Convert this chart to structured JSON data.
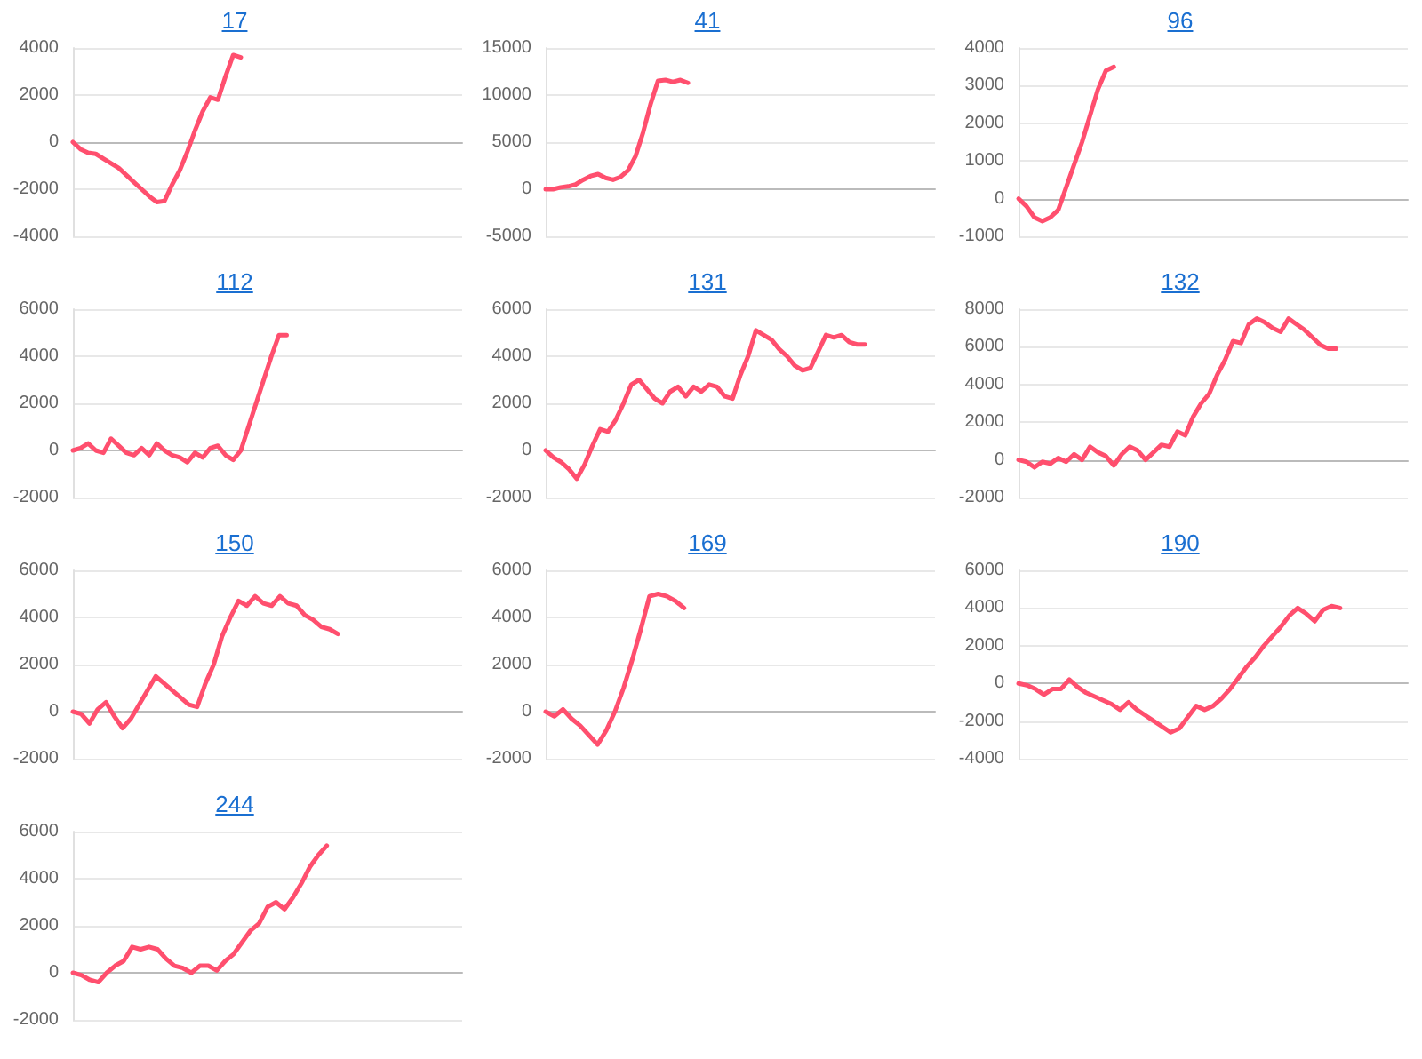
{
  "chart_data": [
    {
      "type": "line",
      "title": "17",
      "color": "#ff4f6e",
      "grid": "y",
      "tick_labels": "y",
      "ylim": [
        -4000,
        4000
      ],
      "yticks": [
        -4000,
        -2000,
        0,
        2000,
        4000
      ],
      "categories": [
        null,
        null,
        null,
        null,
        null,
        null,
        null,
        null,
        null,
        null,
        null,
        null,
        null,
        null,
        null,
        null,
        null,
        null,
        null,
        null,
        null,
        null,
        null,
        null,
        null,
        null,
        null,
        null,
        null,
        null,
        null,
        null,
        null,
        null,
        null,
        null,
        null,
        null,
        null,
        null,
        null,
        null,
        null,
        null,
        null,
        null,
        null,
        null,
        null,
        null,
        null,
        null
      ],
      "values": [
        0,
        -300,
        -450,
        -500,
        -700,
        -900,
        -1100,
        -1400,
        -1700,
        -2000,
        -2300,
        -2550,
        -2500,
        -1800,
        -1200,
        -400,
        500,
        1300,
        1900,
        1800,
        2800,
        3700,
        3600,
        null,
        null,
        null,
        null,
        null,
        null,
        null,
        null,
        null,
        null,
        null,
        null,
        null,
        null,
        null,
        null,
        null,
        null,
        null,
        null,
        null,
        null,
        null,
        null,
        null,
        null,
        null,
        null,
        null
      ]
    },
    {
      "type": "line",
      "title": "41",
      "color": "#ff4f6e",
      "grid": "y",
      "tick_labels": "y",
      "ylim": [
        -5000,
        15000
      ],
      "yticks": [
        -5000,
        0,
        5000,
        10000,
        15000
      ],
      "categories": [
        null,
        null,
        null,
        null,
        null,
        null,
        null,
        null,
        null,
        null,
        null,
        null,
        null,
        null,
        null,
        null,
        null,
        null,
        null,
        null,
        null,
        null,
        null,
        null,
        null,
        null,
        null,
        null,
        null,
        null,
        null,
        null,
        null,
        null,
        null,
        null,
        null,
        null,
        null,
        null,
        null,
        null,
        null,
        null,
        null,
        null,
        null,
        null,
        null,
        null,
        null,
        null,
        null
      ],
      "values": [
        0,
        0,
        200,
        300,
        500,
        1000,
        1400,
        1600,
        1200,
        1000,
        1300,
        2000,
        3500,
        6000,
        9000,
        11500,
        11600,
        11400,
        11600,
        11300,
        null,
        null,
        null,
        null,
        null,
        null,
        null,
        null,
        null,
        null,
        null,
        null,
        null,
        null,
        null,
        null,
        null,
        null,
        null,
        null,
        null,
        null,
        null,
        null,
        null,
        null,
        null,
        null,
        null,
        null,
        null,
        null,
        null
      ]
    },
    {
      "type": "line",
      "title": "96",
      "color": "#ff4f6e",
      "grid": "y",
      "tick_labels": "y",
      "ylim": [
        -1000,
        4000
      ],
      "yticks": [
        -1000,
        0,
        1000,
        2000,
        3000,
        4000
      ],
      "categories": [
        null,
        null,
        null,
        null,
        null,
        null,
        null,
        null,
        null,
        null,
        null,
        null,
        null,
        null,
        null,
        null,
        null,
        null,
        null,
        null,
        null,
        null,
        null,
        null,
        null,
        null,
        null,
        null,
        null,
        null,
        null,
        null,
        null,
        null,
        null,
        null,
        null,
        null,
        null,
        null,
        null,
        null,
        null,
        null,
        null,
        null,
        null,
        null,
        null,
        null
      ],
      "values": [
        0,
        -200,
        -500,
        -600,
        -500,
        -300,
        300,
        900,
        1500,
        2200,
        2900,
        3400,
        3500,
        null,
        null,
        null,
        null,
        null,
        null,
        null,
        null,
        null,
        null,
        null,
        null,
        null,
        null,
        null,
        null,
        null,
        null,
        null,
        null,
        null,
        null,
        null,
        null,
        null,
        null,
        null,
        null,
        null,
        null,
        null,
        null,
        null,
        null,
        null,
        null,
        null
      ]
    },
    {
      "type": "line",
      "title": "112",
      "color": "#ff4f6e",
      "grid": "y",
      "tick_labels": "y",
      "ylim": [
        -2000,
        6000
      ],
      "yticks": [
        -2000,
        0,
        2000,
        4000,
        6000
      ],
      "categories": [
        null,
        null,
        null,
        null,
        null,
        null,
        null,
        null,
        null,
        null,
        null,
        null,
        null,
        null,
        null,
        null,
        null,
        null,
        null,
        null,
        null,
        null,
        null,
        null,
        null,
        null,
        null,
        null,
        null,
        null,
        null,
        null,
        null,
        null,
        null,
        null,
        null,
        null,
        null,
        null,
        null,
        null,
        null,
        null,
        null,
        null,
        null,
        null,
        null,
        null,
        null,
        null
      ],
      "values": [
        0,
        100,
        300,
        0,
        -100,
        500,
        200,
        -100,
        -200,
        100,
        -200,
        300,
        0,
        -200,
        -300,
        -500,
        -100,
        -300,
        100,
        200,
        -200,
        -400,
        0,
        1000,
        2000,
        3000,
        4000,
        4900,
        4900,
        null,
        null,
        null,
        null,
        null,
        null,
        null,
        null,
        null,
        null,
        null,
        null,
        null,
        null,
        null,
        null,
        null,
        null,
        null,
        null,
        null,
        null,
        null
      ]
    },
    {
      "type": "line",
      "title": "131",
      "color": "#ff4f6e",
      "grid": "y",
      "tick_labels": "y",
      "ylim": [
        -2000,
        6000
      ],
      "yticks": [
        -2000,
        0,
        2000,
        4000,
        6000
      ],
      "categories": [
        null,
        null,
        null,
        null,
        null,
        null,
        null,
        null,
        null,
        null,
        null,
        null,
        null,
        null,
        null,
        null,
        null,
        null,
        null,
        null,
        null,
        null,
        null,
        null,
        null,
        null,
        null,
        null,
        null,
        null,
        null,
        null,
        null,
        null,
        null,
        null,
        null,
        null,
        null,
        null,
        null,
        null,
        null,
        null,
        null,
        null,
        null,
        null,
        null,
        null,
        null
      ],
      "values": [
        0,
        -300,
        -500,
        -800,
        -1200,
        -600,
        200,
        900,
        800,
        1300,
        2000,
        2800,
        3000,
        2600,
        2200,
        2000,
        2500,
        2700,
        2300,
        2700,
        2500,
        2800,
        2700,
        2300,
        2200,
        3200,
        4000,
        5100,
        4900,
        4700,
        4300,
        4000,
        3600,
        3400,
        3500,
        4200,
        4900,
        4800,
        4900,
        4600,
        4500,
        4500,
        null,
        null,
        null,
        null,
        null,
        null,
        null,
        null,
        null
      ]
    },
    {
      "type": "line",
      "title": "132",
      "color": "#ff4f6e",
      "grid": "y",
      "tick_labels": "y",
      "ylim": [
        -2000,
        8000
      ],
      "yticks": [
        -2000,
        0,
        2000,
        4000,
        6000,
        8000
      ],
      "categories": [
        null,
        null,
        null,
        null,
        null,
        null,
        null,
        null,
        null,
        null,
        null,
        null,
        null,
        null,
        null,
        null,
        null,
        null,
        null,
        null,
        null,
        null,
        null,
        null,
        null,
        null,
        null,
        null,
        null,
        null,
        null,
        null,
        null,
        null,
        null,
        null,
        null,
        null,
        null,
        null,
        null,
        null,
        null,
        null,
        null,
        null,
        null,
        null,
        null,
        null
      ],
      "values": [
        0,
        -100,
        -400,
        -100,
        -200,
        100,
        -100,
        300,
        0,
        700,
        400,
        200,
        -300,
        300,
        700,
        500,
        0,
        400,
        800,
        700,
        1500,
        1300,
        2300,
        3000,
        3500,
        4500,
        5300,
        6300,
        6200,
        7200,
        7500,
        7300,
        7000,
        6800,
        7500,
        7200,
        6900,
        6500,
        6100,
        5900,
        5900,
        null,
        null,
        null,
        null,
        null,
        null,
        null,
        null,
        null
      ]
    },
    {
      "type": "line",
      "title": "150",
      "color": "#ff4f6e",
      "grid": "y",
      "tick_labels": "y",
      "ylim": [
        -2000,
        6000
      ],
      "yticks": [
        -2000,
        0,
        2000,
        4000,
        6000
      ],
      "categories": [
        null,
        null,
        null,
        null,
        null,
        null,
        null,
        null,
        null,
        null,
        null,
        null,
        null,
        null,
        null,
        null,
        null,
        null,
        null,
        null,
        null,
        null,
        null,
        null,
        null,
        null,
        null,
        null,
        null,
        null,
        null,
        null,
        null,
        null,
        null,
        null,
        null,
        null,
        null,
        null,
        null,
        null,
        null,
        null,
        null,
        null,
        null,
        null
      ],
      "values": [
        0,
        -100,
        -500,
        100,
        400,
        -200,
        -700,
        -300,
        300,
        900,
        1500,
        1200,
        900,
        600,
        300,
        200,
        1200,
        2000,
        3200,
        4000,
        4700,
        4500,
        4900,
        4600,
        4500,
        4900,
        4600,
        4500,
        4100,
        3900,
        3600,
        3500,
        3300,
        null,
        null,
        null,
        null,
        null,
        null,
        null,
        null,
        null,
        null,
        null,
        null,
        null,
        null,
        null
      ]
    },
    {
      "type": "line",
      "title": "169",
      "color": "#ff4f6e",
      "grid": "y",
      "tick_labels": "y",
      "ylim": [
        -2000,
        6000
      ],
      "yticks": [
        -2000,
        0,
        2000,
        4000,
        6000
      ],
      "categories": [
        null,
        null,
        null,
        null,
        null,
        null,
        null,
        null,
        null,
        null,
        null,
        null,
        null,
        null,
        null,
        null,
        null,
        null,
        null,
        null,
        null,
        null,
        null,
        null,
        null,
        null,
        null,
        null,
        null,
        null,
        null,
        null,
        null,
        null,
        null,
        null,
        null,
        null,
        null,
        null,
        null,
        null,
        null,
        null,
        null,
        null
      ],
      "values": [
        0,
        -200,
        100,
        -300,
        -600,
        -1000,
        -1400,
        -800,
        0,
        1000,
        2200,
        3500,
        4900,
        5000,
        4900,
        4700,
        4400,
        null,
        null,
        null,
        null,
        null,
        null,
        null,
        null,
        null,
        null,
        null,
        null,
        null,
        null,
        null,
        null,
        null,
        null,
        null,
        null,
        null,
        null,
        null,
        null,
        null,
        null,
        null,
        null,
        null
      ]
    },
    {
      "type": "line",
      "title": "190",
      "color": "#ff4f6e",
      "grid": "y",
      "tick_labels": "y",
      "ylim": [
        -4000,
        6000
      ],
      "yticks": [
        -4000,
        -2000,
        0,
        2000,
        4000,
        6000
      ],
      "categories": [
        null,
        null,
        null,
        null,
        null,
        null,
        null,
        null,
        null,
        null,
        null,
        null,
        null,
        null,
        null,
        null,
        null,
        null,
        null,
        null,
        null,
        null,
        null,
        null,
        null,
        null,
        null,
        null,
        null,
        null,
        null,
        null,
        null,
        null,
        null,
        null,
        null,
        null,
        null,
        null,
        null,
        null,
        null,
        null,
        null,
        null,
        null
      ],
      "values": [
        0,
        -100,
        -300,
        -600,
        -300,
        -300,
        200,
        -200,
        -500,
        -700,
        -900,
        -1100,
        -1400,
        -1000,
        -1400,
        -1700,
        -2000,
        -2300,
        -2600,
        -2400,
        -1800,
        -1200,
        -1400,
        -1200,
        -800,
        -300,
        300,
        900,
        1400,
        2000,
        2500,
        3000,
        3600,
        4000,
        3700,
        3300,
        3900,
        4100,
        4000,
        null,
        null,
        null,
        null,
        null,
        null,
        null,
        null
      ]
    },
    {
      "type": "line",
      "title": "244",
      "color": "#ff4f6e",
      "grid": "y",
      "tick_labels": "y",
      "ylim": [
        -2000,
        6000
      ],
      "yticks": [
        -2000,
        0,
        2000,
        4000,
        6000
      ],
      "categories": [
        null,
        null,
        null,
        null,
        null,
        null,
        null,
        null,
        null,
        null,
        null,
        null,
        null,
        null,
        null,
        null,
        null,
        null,
        null,
        null,
        null,
        null,
        null,
        null,
        null,
        null,
        null,
        null,
        null,
        null,
        null,
        null,
        null,
        null,
        null,
        null,
        null,
        null,
        null,
        null,
        null,
        null,
        null,
        null,
        null,
        null,
        null
      ],
      "values": [
        0,
        -100,
        -300,
        -400,
        0,
        300,
        500,
        1100,
        1000,
        1100,
        1000,
        600,
        300,
        200,
        0,
        300,
        300,
        100,
        500,
        800,
        1300,
        1800,
        2100,
        2800,
        3000,
        2700,
        3200,
        3800,
        4500,
        5000,
        5400,
        null,
        null,
        null,
        null,
        null,
        null,
        null,
        null,
        null,
        null,
        null,
        null,
        null,
        null,
        null,
        null
      ]
    }
  ]
}
